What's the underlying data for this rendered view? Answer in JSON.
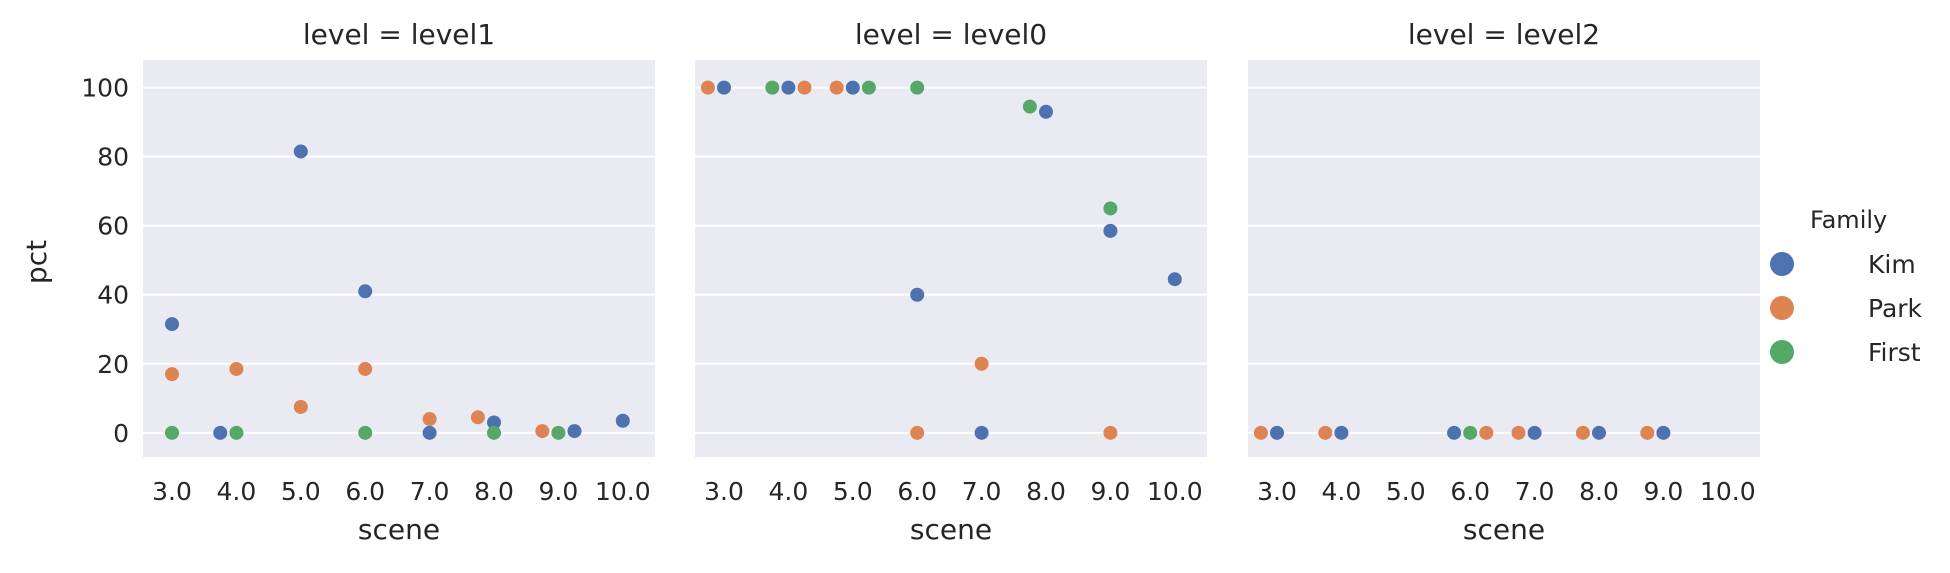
{
  "chart_data": {
    "type": "scatter",
    "xlabel": "scene",
    "ylabel": "pct",
    "ylim": [
      -7,
      108
    ],
    "yticks": [
      0,
      20,
      40,
      60,
      80,
      100
    ],
    "categories": [
      "3.0",
      "4.0",
      "5.0",
      "6.0",
      "7.0",
      "8.0",
      "9.0",
      "10.0"
    ],
    "grid": true,
    "legend": {
      "title": "Family",
      "placement": "right",
      "entries": [
        {
          "name": "Kim",
          "color": "#4c72b0"
        },
        {
          "name": "Park",
          "color": "#dd8452"
        },
        {
          "name": "First",
          "color": "#55a868"
        }
      ]
    },
    "panels": [
      {
        "title": "level = level1",
        "points": [
          {
            "x": "3.0",
            "y": 31.5,
            "family": "Kim",
            "offset": 0
          },
          {
            "x": "3.0",
            "y": 17,
            "family": "Park",
            "offset": 0
          },
          {
            "x": "3.0",
            "y": 0,
            "family": "First",
            "offset": 0
          },
          {
            "x": "4.0",
            "y": 0,
            "family": "Kim",
            "offset": -0.25
          },
          {
            "x": "4.0",
            "y": 18.5,
            "family": "Park",
            "offset": 0
          },
          {
            "x": "4.0",
            "y": 0,
            "family": "First",
            "offset": 0
          },
          {
            "x": "5.0",
            "y": 81.5,
            "family": "Kim",
            "offset": 0
          },
          {
            "x": "5.0",
            "y": 7.5,
            "family": "Park",
            "offset": 0
          },
          {
            "x": "6.0",
            "y": 41,
            "family": "Kim",
            "offset": 0
          },
          {
            "x": "6.0",
            "y": 18.5,
            "family": "Park",
            "offset": 0
          },
          {
            "x": "6.0",
            "y": 0,
            "family": "First",
            "offset": 0
          },
          {
            "x": "7.0",
            "y": 0,
            "family": "Kim",
            "offset": 0
          },
          {
            "x": "7.0",
            "y": 4,
            "family": "Park",
            "offset": 0
          },
          {
            "x": "8.0",
            "y": 3,
            "family": "Kim",
            "offset": 0
          },
          {
            "x": "8.0",
            "y": 4.5,
            "family": "Park",
            "offset": -0.25
          },
          {
            "x": "8.0",
            "y": 0,
            "family": "First",
            "offset": 0
          },
          {
            "x": "9.0",
            "y": 0.5,
            "family": "Kim",
            "offset": 0.25
          },
          {
            "x": "9.0",
            "y": 0.5,
            "family": "Park",
            "offset": -0.25
          },
          {
            "x": "9.0",
            "y": 0,
            "family": "First",
            "offset": 0
          },
          {
            "x": "10.0",
            "y": 3.5,
            "family": "Kim",
            "offset": 0
          }
        ]
      },
      {
        "title": "level = level0",
        "points": [
          {
            "x": "3.0",
            "y": 100,
            "family": "Kim",
            "offset": 0
          },
          {
            "x": "3.0",
            "y": 100,
            "family": "Park",
            "offset": -0.25
          },
          {
            "x": "4.0",
            "y": 100,
            "family": "Kim",
            "offset": 0
          },
          {
            "x": "4.0",
            "y": 100,
            "family": "Park",
            "offset": 0.25
          },
          {
            "x": "4.0",
            "y": 100,
            "family": "First",
            "offset": -0.25
          },
          {
            "x": "5.0",
            "y": 100,
            "family": "Kim",
            "offset": 0
          },
          {
            "x": "5.0",
            "y": 100,
            "family": "Park",
            "offset": -0.25
          },
          {
            "x": "5.0",
            "y": 100,
            "family": "First",
            "offset": 0.25
          },
          {
            "x": "6.0",
            "y": 40,
            "family": "Kim",
            "offset": 0
          },
          {
            "x": "6.0",
            "y": 0,
            "family": "Park",
            "offset": 0
          },
          {
            "x": "6.0",
            "y": 100,
            "family": "First",
            "offset": 0
          },
          {
            "x": "7.0",
            "y": 0,
            "family": "Kim",
            "offset": 0
          },
          {
            "x": "7.0",
            "y": 20,
            "family": "Park",
            "offset": 0
          },
          {
            "x": "8.0",
            "y": 93,
            "family": "Kim",
            "offset": 0
          },
          {
            "x": "8.0",
            "y": 94.5,
            "family": "First",
            "offset": -0.25
          },
          {
            "x": "9.0",
            "y": 58.5,
            "family": "Kim",
            "offset": 0
          },
          {
            "x": "9.0",
            "y": 0,
            "family": "Park",
            "offset": 0
          },
          {
            "x": "9.0",
            "y": 65,
            "family": "First",
            "offset": 0
          },
          {
            "x": "10.0",
            "y": 44.5,
            "family": "Kim",
            "offset": 0
          }
        ]
      },
      {
        "title": "level = level2",
        "points": [
          {
            "x": "3.0",
            "y": 0,
            "family": "Kim",
            "offset": 0
          },
          {
            "x": "3.0",
            "y": 0,
            "family": "Park",
            "offset": -0.25
          },
          {
            "x": "4.0",
            "y": 0,
            "family": "Kim",
            "offset": 0
          },
          {
            "x": "4.0",
            "y": 0,
            "family": "Park",
            "offset": -0.25
          },
          {
            "x": "6.0",
            "y": 0,
            "family": "Kim",
            "offset": -0.25
          },
          {
            "x": "6.0",
            "y": 0,
            "family": "Park",
            "offset": 0.25
          },
          {
            "x": "6.0",
            "y": 0,
            "family": "First",
            "offset": 0
          },
          {
            "x": "7.0",
            "y": 0,
            "family": "Kim",
            "offset": 0
          },
          {
            "x": "7.0",
            "y": 0,
            "family": "Park",
            "offset": -0.25
          },
          {
            "x": "8.0",
            "y": 0,
            "family": "Kim",
            "offset": 0
          },
          {
            "x": "8.0",
            "y": 0,
            "family": "Park",
            "offset": -0.25
          },
          {
            "x": "9.0",
            "y": 0,
            "family": "Kim",
            "offset": 0
          },
          {
            "x": "9.0",
            "y": 0,
            "family": "Park",
            "offset": -0.25
          }
        ]
      }
    ]
  }
}
